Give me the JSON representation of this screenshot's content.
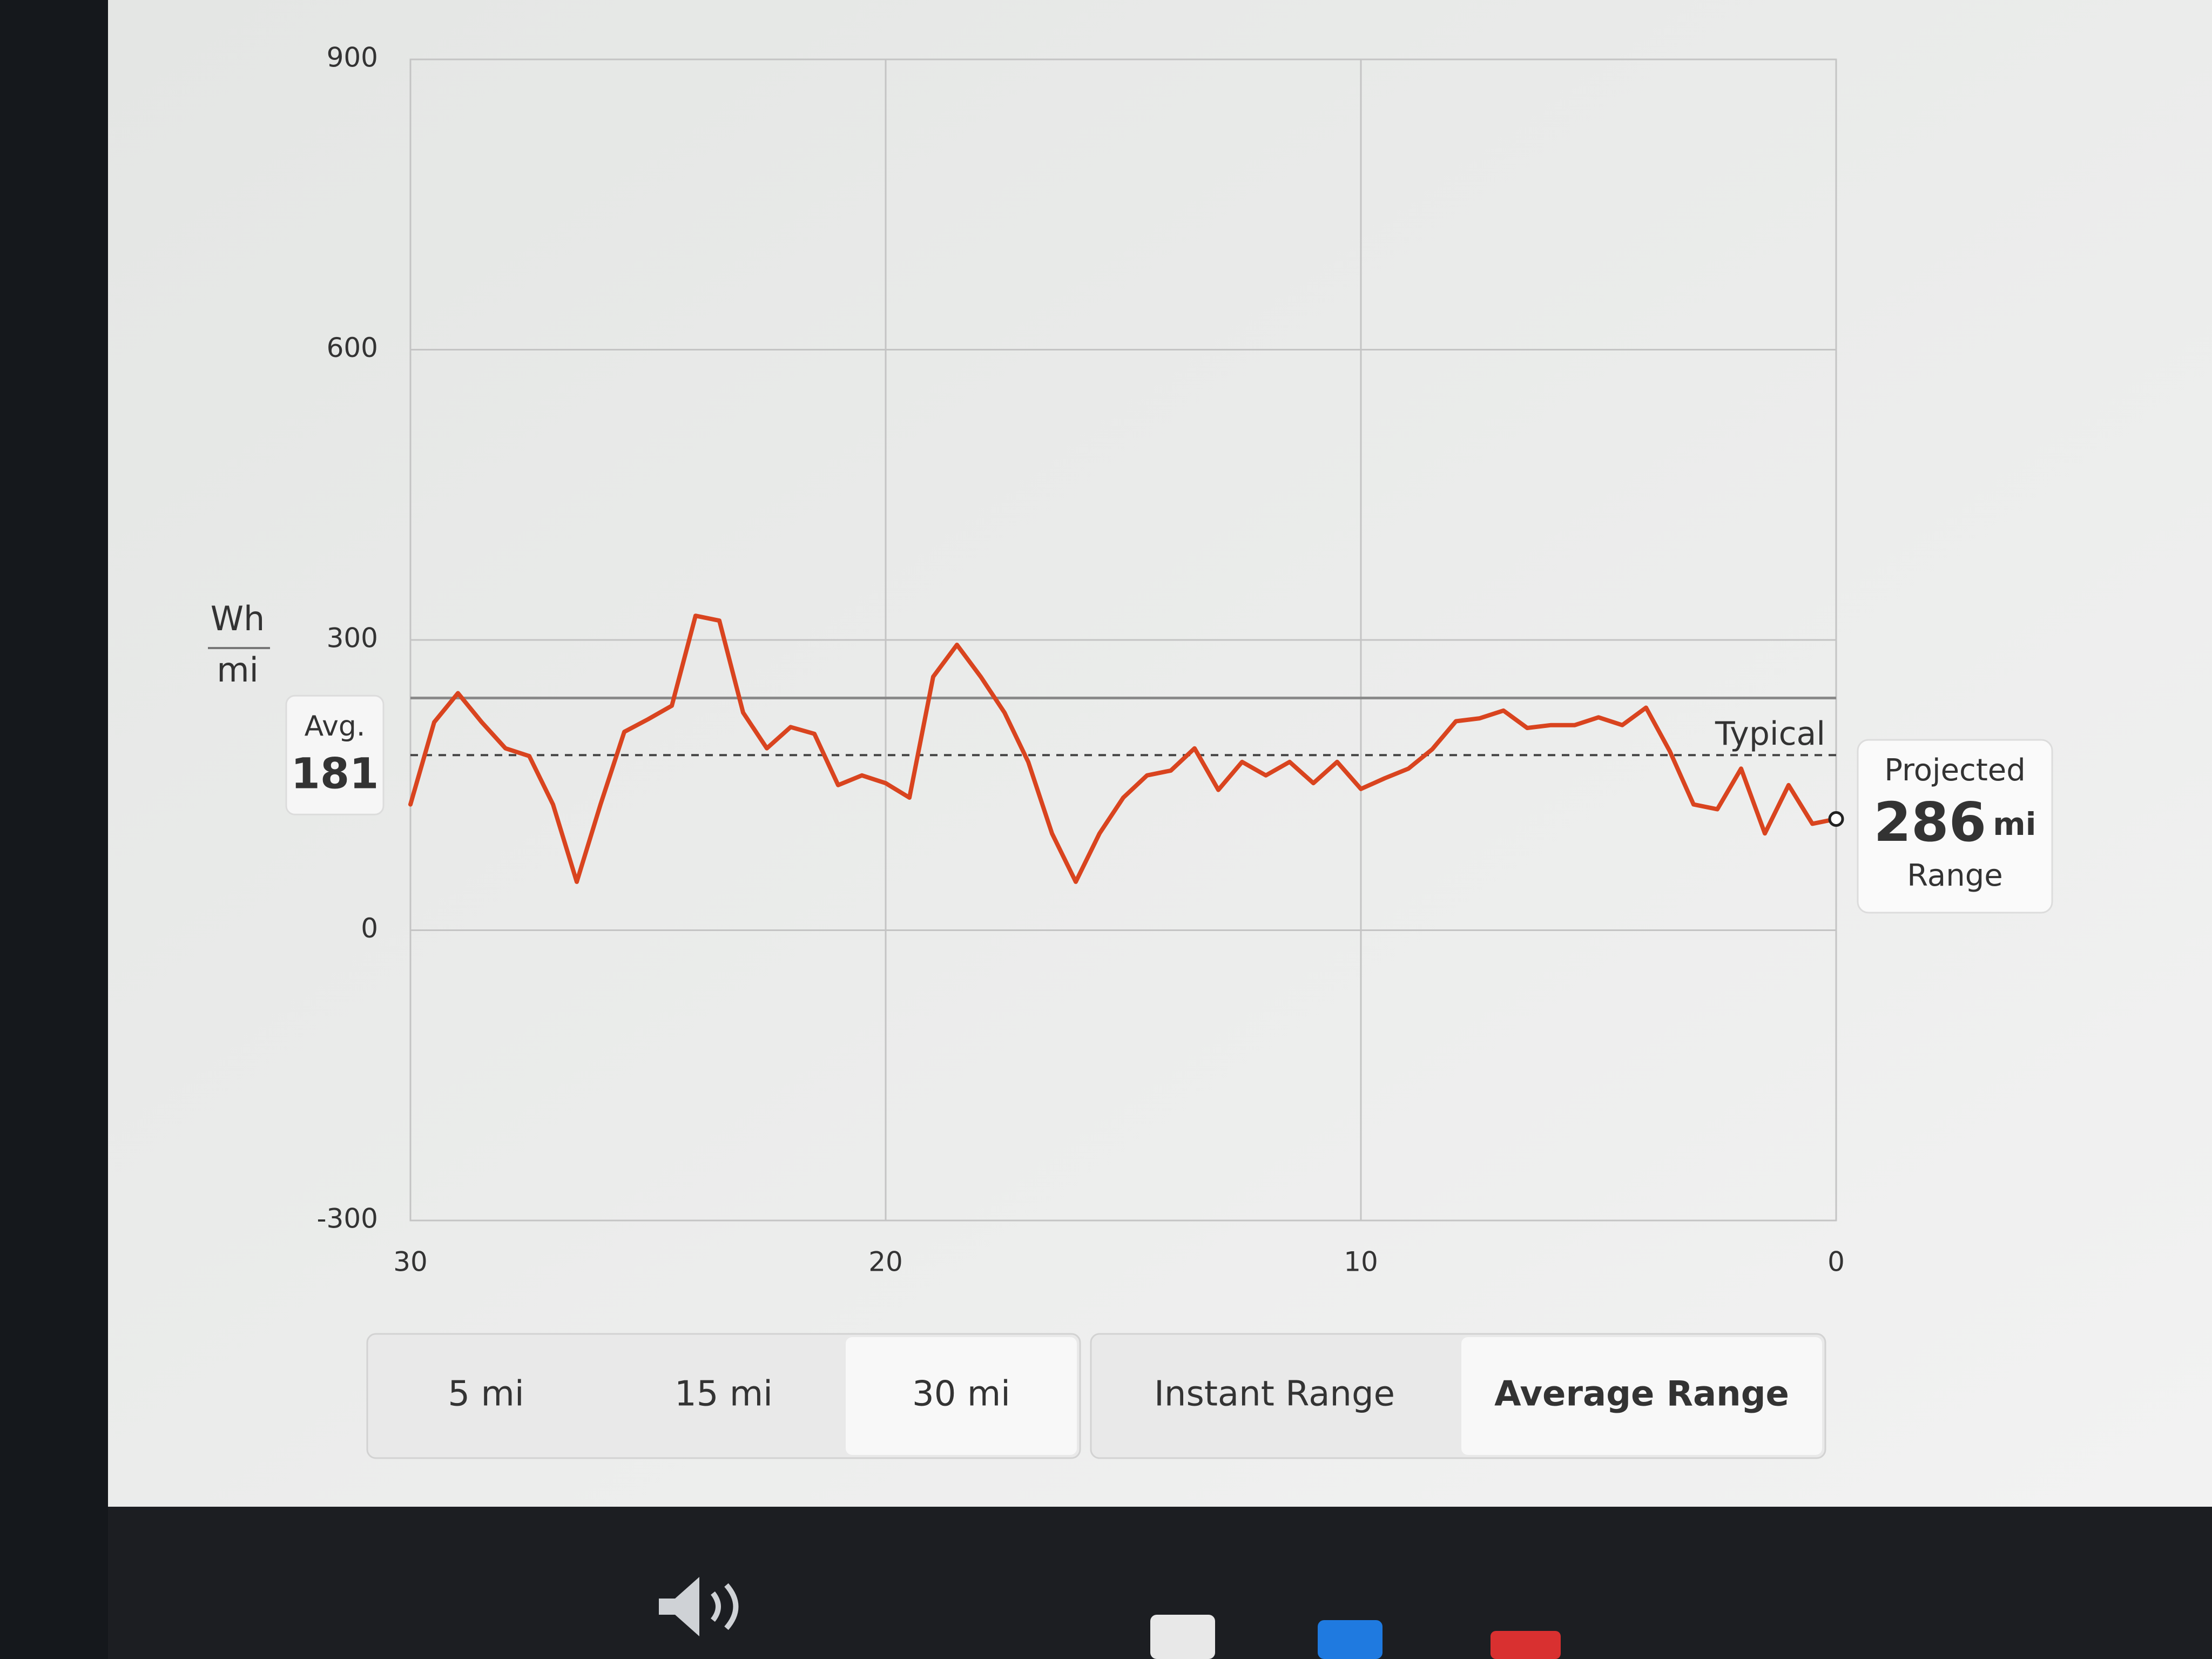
{
  "chart_data": {
    "type": "line",
    "y_label": {
      "numerator": "Wh",
      "denominator": "mi"
    },
    "x": [
      30,
      29.5,
      29,
      28.5,
      28,
      27.5,
      27,
      26.5,
      26,
      25.5,
      25,
      24.5,
      24,
      23.5,
      23,
      22.5,
      22,
      21.5,
      21,
      20.5,
      20,
      19.5,
      19,
      18.5,
      18,
      17.5,
      17,
      16.5,
      16,
      15.5,
      15,
      14.5,
      14,
      13.5,
      13,
      12.5,
      12,
      11.5,
      11,
      10.5,
      10,
      9.5,
      9,
      8.5,
      8,
      7.5,
      7,
      6.5,
      6,
      5.5,
      5,
      4.5,
      4,
      3.5,
      3,
      2.5,
      2,
      1.5,
      1,
      0.5,
      0
    ],
    "values": [
      130,
      215,
      245,
      215,
      188,
      180,
      130,
      50,
      130,
      205,
      218,
      232,
      325,
      320,
      225,
      188,
      210,
      203,
      150,
      160,
      152,
      137,
      262,
      295,
      262,
      225,
      174,
      100,
      50,
      100,
      137,
      160,
      165,
      188,
      145,
      174,
      160,
      174,
      152,
      174,
      146,
      157,
      167,
      187,
      216,
      219,
      227,
      209,
      212,
      212,
      220,
      212,
      230,
      185,
      130,
      125,
      167,
      100,
      150,
      110,
      115
    ],
    "color": "#d9441f",
    "xlim": [
      30,
      0
    ],
    "xticks": [
      30,
      20,
      10,
      0
    ],
    "ylim": [
      -300,
      900
    ],
    "yticks": [
      -300,
      0,
      300,
      600,
      900
    ],
    "grid": true,
    "avg": {
      "label": "Avg.",
      "value": 181
    },
    "typical": {
      "label": "Typical",
      "value": 240
    },
    "projected": {
      "label": "Projected",
      "value": 286,
      "unit": "mi",
      "caption": "Range"
    }
  },
  "controls": {
    "distance": [
      "5 mi",
      "15 mi",
      "30 mi"
    ],
    "selected_distance": 2,
    "range_mode": [
      "Instant Range",
      "Average Range"
    ],
    "selected_range_mode": 1
  }
}
